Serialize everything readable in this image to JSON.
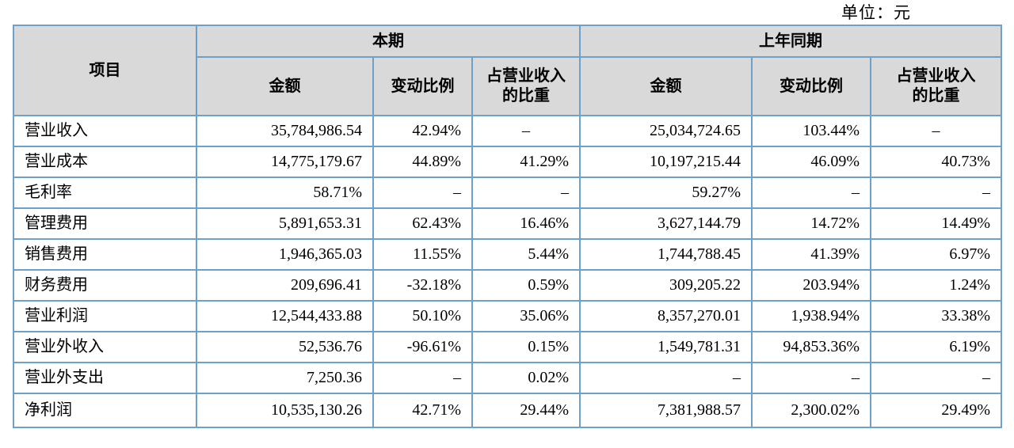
{
  "unit_label": "单位：元",
  "colors": {
    "table_border": "#6FA0C8",
    "header_background": "#D9D9D9",
    "text": "#000000"
  },
  "table": {
    "col_item": "项目",
    "group_current": "本期",
    "group_prior": "上年同期",
    "sub_amount": "金额",
    "sub_change": "变动比例",
    "sub_share_line1": "占营业收入",
    "sub_share_line2": "的比重",
    "rows": [
      {
        "item": "营业收入",
        "cur_amount": "35,784,986.54",
        "cur_change": "42.94%",
        "cur_share": "–",
        "prior_amount": "25,034,724.65",
        "prior_change": "103.44%",
        "prior_share": "–"
      },
      {
        "item": "营业成本",
        "cur_amount": "14,775,179.67",
        "cur_change": "44.89%",
        "cur_share": "41.29%",
        "prior_amount": "10,197,215.44",
        "prior_change": "46.09%",
        "prior_share": "40.73%"
      },
      {
        "item": "毛利率",
        "cur_amount": "58.71%",
        "cur_change": "–",
        "cur_share": "–",
        "prior_amount": "59.27%",
        "prior_change": "–",
        "prior_share": "–"
      },
      {
        "item": "管理费用",
        "cur_amount": "5,891,653.31",
        "cur_change": "62.43%",
        "cur_share": "16.46%",
        "prior_amount": "3,627,144.79",
        "prior_change": "14.72%",
        "prior_share": "14.49%"
      },
      {
        "item": "销售费用",
        "cur_amount": "1,946,365.03",
        "cur_change": "11.55%",
        "cur_share": "5.44%",
        "prior_amount": "1,744,788.45",
        "prior_change": "41.39%",
        "prior_share": "6.97%"
      },
      {
        "item": "财务费用",
        "cur_amount": "209,696.41",
        "cur_change": "-32.18%",
        "cur_share": "0.59%",
        "prior_amount": "309,205.22",
        "prior_change": "203.94%",
        "prior_share": "1.24%"
      },
      {
        "item": "营业利润",
        "cur_amount": "12,544,433.88",
        "cur_change": "50.10%",
        "cur_share": "35.06%",
        "prior_amount": "8,357,270.01",
        "prior_change": "1,938.94%",
        "prior_share": "33.38%"
      },
      {
        "item": "营业外收入",
        "cur_amount": "52,536.76",
        "cur_change": "-96.61%",
        "cur_share": "0.15%",
        "prior_amount": "1,549,781.31",
        "prior_change": "94,853.36%",
        "prior_share": "6.19%"
      },
      {
        "item": "营业外支出",
        "cur_amount": "7,250.36",
        "cur_change": "–",
        "cur_share": "0.02%",
        "prior_amount": "–",
        "prior_change": "–",
        "prior_share": "–"
      },
      {
        "item": "净利润",
        "cur_amount": "10,535,130.26",
        "cur_change": "42.71%",
        "cur_share": "29.44%",
        "prior_amount": "7,381,988.57",
        "prior_change": "2,300.02%",
        "prior_share": "29.49%"
      }
    ]
  }
}
